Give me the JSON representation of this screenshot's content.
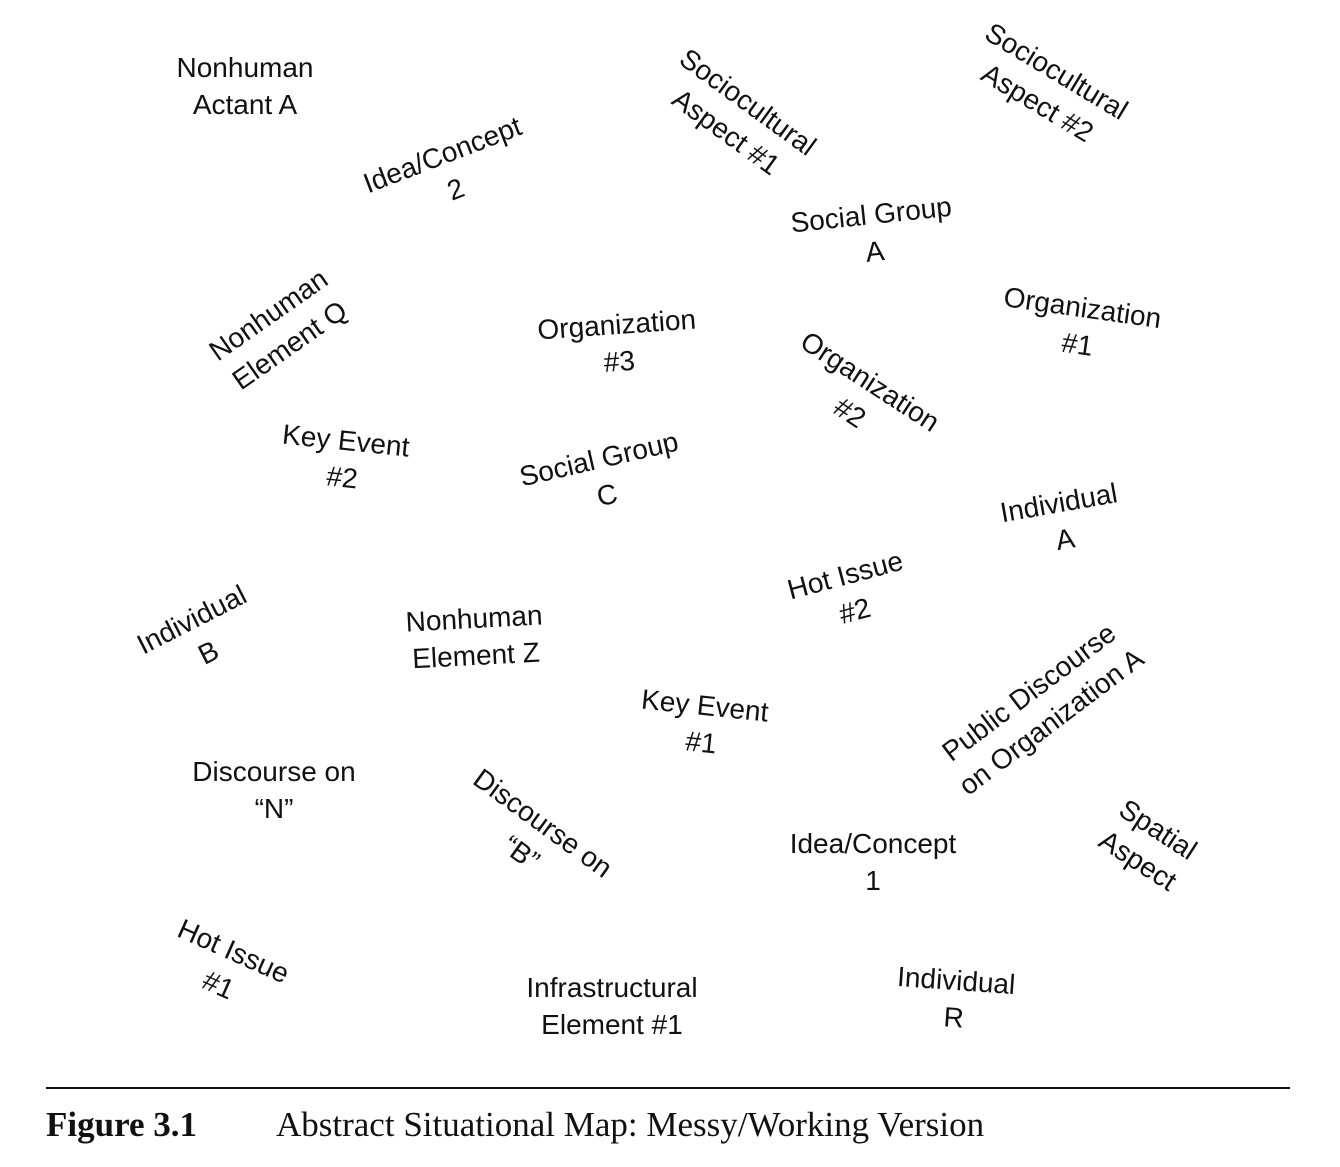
{
  "map_labels": {
    "nonhuman_actant_a": [
      "Nonhuman",
      "Actant A"
    ],
    "idea_concept_2": [
      "Idea/Concept",
      "2"
    ],
    "sociocultural_aspect_1": [
      "Sociocultural",
      "Aspect #1"
    ],
    "sociocultural_aspect_2": [
      "Sociocultural",
      "Aspect #2"
    ],
    "social_group_a": [
      "Social Group",
      "A"
    ],
    "nonhuman_element_q": [
      "Nonhuman",
      "Element Q"
    ],
    "organization_3": [
      "Organization",
      "#3"
    ],
    "organization_1": [
      "Organization",
      "#1"
    ],
    "organization_2": [
      "Organization",
      "#2"
    ],
    "key_event_2": [
      "Key Event",
      "#2"
    ],
    "social_group_c": [
      "Social Group",
      "C"
    ],
    "individual_a": [
      "Individual",
      "A"
    ],
    "hot_issue_2": [
      "Hot Issue",
      "#2"
    ],
    "individual_b": [
      "Individual",
      "B"
    ],
    "nonhuman_element_z": [
      "Nonhuman",
      "Element Z"
    ],
    "public_discourse_org_a": [
      "Public Discourse",
      "on Organization A"
    ],
    "key_event_1": [
      "Key Event",
      "#1"
    ],
    "discourse_on_n": [
      "Discourse on",
      "“N”"
    ],
    "discourse_on_b": [
      "Discourse on",
      "“B”"
    ],
    "idea_concept_1": [
      "Idea/Concept",
      "1"
    ],
    "spatial_aspect": [
      "Spatial",
      "Aspect"
    ],
    "hot_issue_1": [
      "Hot Issue",
      "#1"
    ],
    "infrastructural_element_1": [
      "Infrastructural",
      "Element #1"
    ],
    "individual_r": [
      "Individual",
      "R"
    ]
  },
  "caption": {
    "figure_number": "Figure 3.1",
    "title": "Abstract Situational Map: Messy/Working Version"
  }
}
